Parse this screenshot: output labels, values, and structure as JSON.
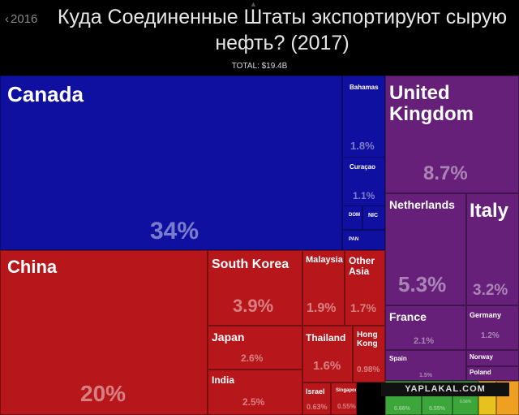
{
  "header": {
    "back_label": "2016",
    "title": "Куда Соединенные Штаты экспортируют сырую нефть? (2017)",
    "total": "TOTAL: $19.4B"
  },
  "watermark": "YAPLAKAL.COM",
  "colors": {
    "north_america": "#1010a0",
    "asia": "#b7171a",
    "europe": "#66207a",
    "small_orange": "#f0a020",
    "small_yellow": "#e7c21e",
    "small_green": "#3da63a"
  },
  "chart_data": {
    "type": "treemap",
    "title": "Куда Соединенные Штаты экспортируют сырую нефть? (2017)",
    "total": "$19.4B",
    "groups": [
      {
        "color": "#1010a0",
        "items": [
          {
            "label": "Canada",
            "value": 34,
            "pct": "34%"
          },
          {
            "label": "Bahamas",
            "value": 1.8,
            "pct": "1.8%"
          },
          {
            "label": "Curaçao",
            "value": 1.1,
            "pct": "1.1%"
          },
          {
            "label": "DOM",
            "value": null,
            "pct": ""
          },
          {
            "label": "NIC",
            "value": null,
            "pct": ""
          },
          {
            "label": "PAN",
            "value": null,
            "pct": ""
          }
        ]
      },
      {
        "color": "#b7171a",
        "items": [
          {
            "label": "China",
            "value": 20,
            "pct": "20%"
          },
          {
            "label": "South Korea",
            "value": 3.9,
            "pct": "3.9%"
          },
          {
            "label": "Japan",
            "value": 2.6,
            "pct": "2.6%"
          },
          {
            "label": "India",
            "value": 2.5,
            "pct": "2.5%"
          },
          {
            "label": "Malaysia",
            "value": 1.9,
            "pct": "1.9%"
          },
          {
            "label": "Other Asia",
            "value": 1.7,
            "pct": "1.7%"
          },
          {
            "label": "Thailand",
            "value": 1.6,
            "pct": "1.6%"
          },
          {
            "label": "Hong Kong",
            "value": 0.98,
            "pct": "0.98%"
          },
          {
            "label": "Israel",
            "value": 0.63,
            "pct": "0.63%"
          },
          {
            "label": "Singapore",
            "value": 0.55,
            "pct": "0.55%"
          }
        ]
      },
      {
        "color": "#66207a",
        "items": [
          {
            "label": "United Kingdom",
            "value": 8.7,
            "pct": "8.7%"
          },
          {
            "label": "Netherlands",
            "value": 5.3,
            "pct": "5.3%"
          },
          {
            "label": "Italy",
            "value": 3.2,
            "pct": "3.2%"
          },
          {
            "label": "France",
            "value": 2.1,
            "pct": "2.1%"
          },
          {
            "label": "Germany",
            "value": 1.2,
            "pct": "1.2%"
          },
          {
            "label": "Spain",
            "value": 1.5,
            "pct": "1.5%"
          },
          {
            "label": "Norway",
            "value": null,
            "pct": ""
          },
          {
            "label": "Poland",
            "value": null,
            "pct": ""
          }
        ]
      },
      {
        "color": "#3da63a",
        "items": [
          {
            "label": "",
            "value": 0.66,
            "pct": "0.66%"
          },
          {
            "label": "",
            "value": 0.55,
            "pct": "0.55%"
          },
          {
            "label": "",
            "value": null,
            "pct": "0.56%"
          }
        ]
      },
      {
        "color": "#e7c21e",
        "items": [
          {
            "label": "",
            "value": null,
            "pct": ""
          }
        ]
      },
      {
        "color": "#f0a020",
        "items": [
          {
            "label": "",
            "value": null,
            "pct": ""
          }
        ]
      }
    ]
  }
}
